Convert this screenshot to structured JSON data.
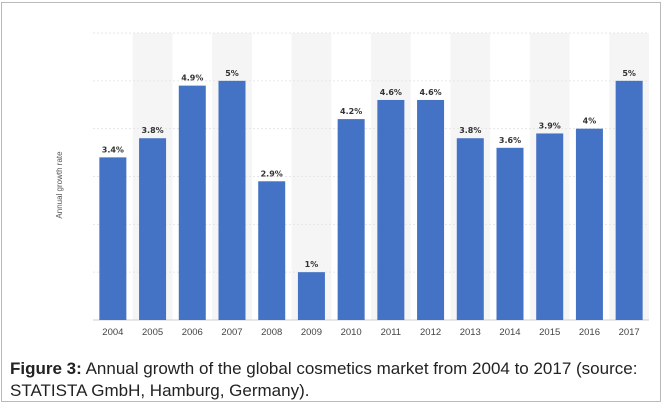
{
  "chart_data": {
    "type": "bar",
    "ylabel": "Annual growth rate",
    "categories": [
      "2004",
      "2005",
      "2006",
      "2007",
      "2008",
      "2009",
      "2010",
      "2011",
      "2012",
      "2013",
      "2014",
      "2015",
      "2016",
      "2017"
    ],
    "values": [
      3.4,
      3.8,
      4.9,
      5,
      2.9,
      1,
      4.2,
      4.6,
      4.6,
      3.8,
      3.6,
      3.9,
      4,
      5
    ],
    "data_labels": [
      "3.4%",
      "3.8%",
      "4.9%",
      "5%",
      "2.9%",
      "1%",
      "4.2%",
      "4.6%",
      "4.6%",
      "3.8%",
      "3.6%",
      "3.9%",
      "4%",
      "5%"
    ],
    "ylim": [
      0,
      6
    ],
    "grid": true,
    "bar_color": "#4472c4"
  },
  "caption": {
    "label": "Figure 3:",
    "text": " Annual growth of the global cosmetics market from 2004 to 2017 (source: STATISTA GmbH, Hamburg, Germany)."
  }
}
